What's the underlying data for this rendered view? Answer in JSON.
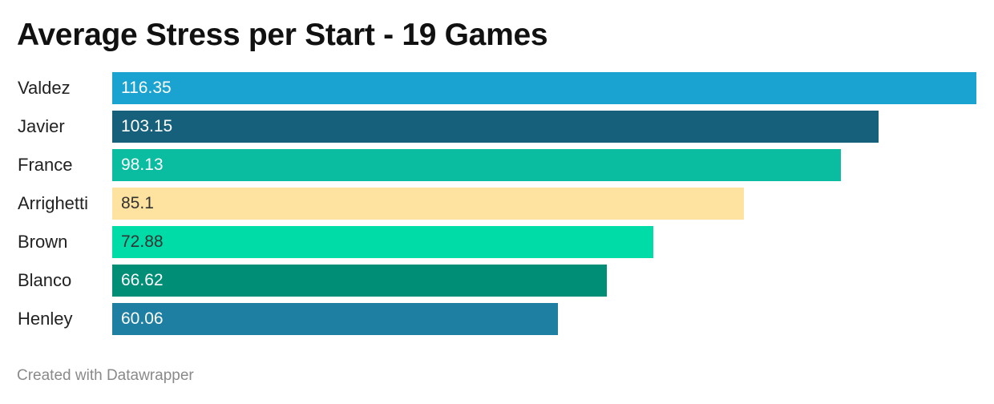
{
  "chart_data": {
    "type": "bar",
    "orientation": "horizontal",
    "title": "Average Stress per Start - 19 Games",
    "categories": [
      "Valdez",
      "Javier",
      "France",
      "Arrighetti",
      "Brown",
      "Blanco",
      "Henley"
    ],
    "values": [
      116.35,
      103.15,
      98.13,
      85.1,
      72.88,
      66.62,
      60.06
    ],
    "value_labels": [
      "116.35",
      "103.15",
      "98.13",
      "85.1",
      "72.88",
      "66.62",
      "60.06"
    ],
    "colors": [
      "#1aa3d1",
      "#16607c",
      "#0abca0",
      "#fde39f",
      "#00dca7",
      "#008e77",
      "#1f7fa3"
    ],
    "value_label_colors": [
      "#ffffff",
      "#ffffff",
      "#ffffff",
      "#333333",
      "#333333",
      "#ffffff",
      "#ffffff"
    ],
    "xlim": [
      0,
      116.35
    ],
    "grid": false,
    "legend": false
  },
  "footer": {
    "credit": "Created with Datawrapper"
  }
}
